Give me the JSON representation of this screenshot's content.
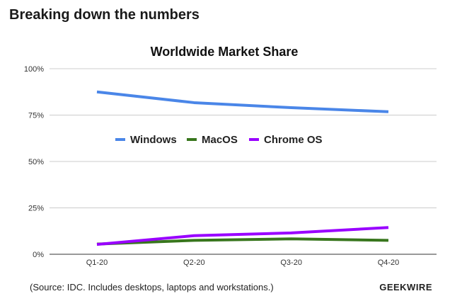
{
  "header": {
    "title": "Breaking down the numbers"
  },
  "footer": {
    "source": "(Source: IDC. Includes desktops, laptops and workstations.)",
    "brand": "GEEKWIRE"
  },
  "chart_data": {
    "type": "line",
    "title": "Worldwide Market Share",
    "xlabel": "",
    "ylabel": "",
    "categories": [
      "Q1-20",
      "Q2-20",
      "Q3-20",
      "Q4-20"
    ],
    "ylim": [
      0,
      100
    ],
    "yticks": [
      0,
      25,
      50,
      75,
      100
    ],
    "ytick_labels": [
      "0%",
      "25%",
      "50%",
      "75%",
      "100%"
    ],
    "grid": true,
    "legend_position": "center",
    "series": [
      {
        "name": "Windows",
        "color": "#4a86e8",
        "values": [
          87.5,
          81.7,
          79.0,
          76.8
        ]
      },
      {
        "name": "MacOS",
        "color": "#38761d",
        "values": [
          5.5,
          7.5,
          8.3,
          7.5
        ]
      },
      {
        "name": "Chrome OS",
        "color": "#9900ff",
        "values": [
          5.3,
          10.0,
          11.5,
          14.4
        ]
      }
    ]
  }
}
